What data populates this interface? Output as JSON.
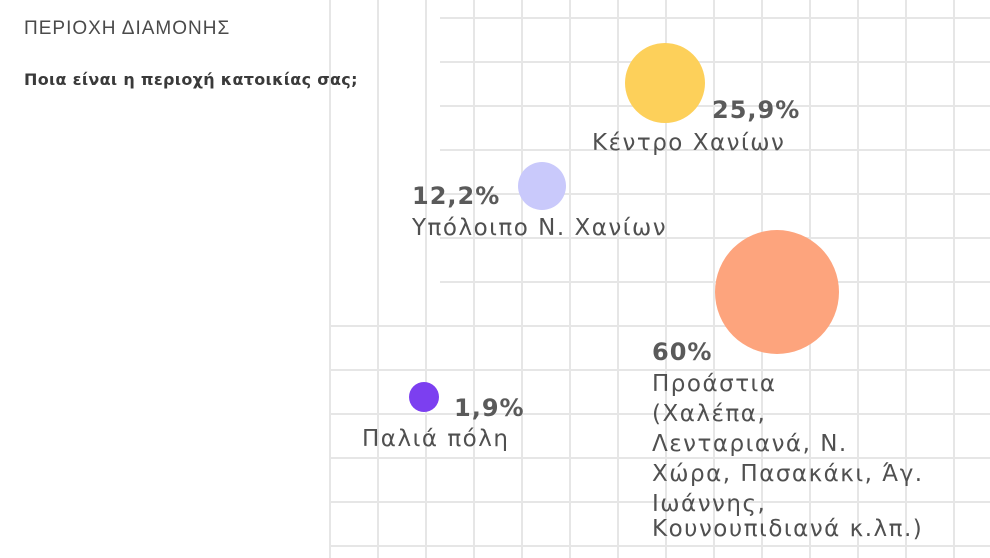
{
  "header": {
    "kicker": "ΠΕΡΙΟΧΗ ΔΙΑΜΟΝΗΣ",
    "question": "Ποια είναι η περιοχή κατοικίας σας;"
  },
  "chart_data": {
    "type": "bubble",
    "title": "Ποια είναι η περιοχή κατοικίας σας;",
    "unit": "%",
    "grid": true,
    "series": [
      {
        "label": "Κέντρο Χανίων",
        "value": 25.9,
        "value_label": "25,9%",
        "color": "#fdd05a",
        "label_lines": [
          "Κέντρο Χανίων"
        ]
      },
      {
        "label": "Υπόλοιπο Ν. Χανίων",
        "value": 12.2,
        "value_label": "12,2%",
        "color": "#c9c9fb",
        "label_lines": [
          "Υπόλοιπο Ν. Χανίων"
        ]
      },
      {
        "label": "Προάστια (Χαλέπα, Λενταριανά, Ν. Χώρα, Πασακάκι, Άγ. Ιωάννης, Κουνουπιδιανά κ.λπ.)",
        "value": 60,
        "value_label": "60%",
        "color": "#fda47d",
        "label_lines": [
          "Προάστια",
          "(Χαλέπα,",
          "Λενταριανά, Ν.",
          "Χώρα, Πασακάκι, Άγ.",
          "Ιωάννης,",
          "Κουνουπιδιανά κ.λπ.)"
        ]
      },
      {
        "label": "Παλιά πόλη",
        "value": 1.9,
        "value_label": "1,9%",
        "color": "#7c3ff0",
        "label_lines": [
          "Παλιά πόλη"
        ]
      }
    ]
  }
}
